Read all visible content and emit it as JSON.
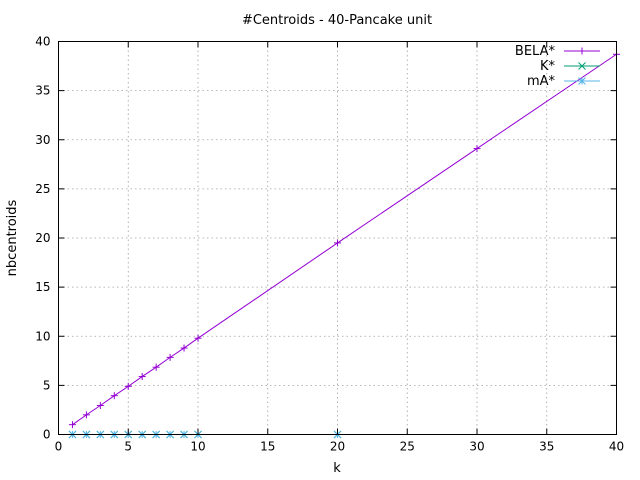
{
  "chart_data": {
    "type": "line",
    "title": "#Centroids - 40-Pancake unit",
    "xlabel": "k",
    "ylabel": "nbcentroids",
    "xlim": [
      0,
      40
    ],
    "ylim": [
      0,
      40
    ],
    "xticks": [
      "0",
      "5",
      "10",
      "15",
      "20",
      "25",
      "30",
      "35",
      "40"
    ],
    "yticks": [
      "0",
      "5",
      "10",
      "15",
      "20",
      "25",
      "30",
      "35",
      "40"
    ],
    "grid": true,
    "legend_position": "top-right",
    "series": [
      {
        "name": "BELA*",
        "color": "#9400d3",
        "marker": "plus",
        "x": [
          1,
          2,
          3,
          4,
          5,
          6,
          7,
          8,
          9,
          10,
          20,
          30,
          40
        ],
        "y": [
          1,
          2,
          2.95,
          3.95,
          4.9,
          5.9,
          6.85,
          7.85,
          8.8,
          9.8,
          19.5,
          29.1,
          38.7
        ]
      },
      {
        "name": "K*",
        "color": "#009e73",
        "marker": "cross",
        "x": [
          1,
          2,
          3,
          4,
          5,
          6,
          7,
          8,
          9,
          10,
          20
        ],
        "y": [
          0,
          0,
          0,
          0,
          0,
          0,
          0,
          0,
          0,
          0,
          0
        ]
      },
      {
        "name": "mA*",
        "color": "#56b4e9",
        "marker": "star",
        "x": [
          1,
          2,
          3,
          4,
          5,
          6,
          7,
          8,
          9,
          10,
          20
        ],
        "y": [
          0,
          0,
          0,
          0,
          0,
          0,
          0,
          0,
          0,
          0,
          0
        ]
      }
    ]
  }
}
